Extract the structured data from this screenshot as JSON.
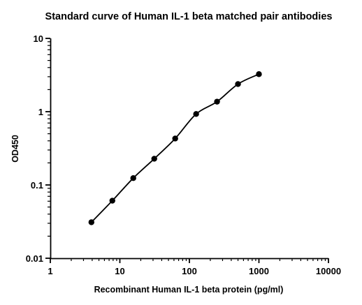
{
  "chart_data": {
    "type": "scatter",
    "title": "Standard curve of Human IL-1 beta matched pair antibodies",
    "xlabel": "Recombinant Human IL-1 beta protein (pg/ml)",
    "ylabel": "OD450",
    "xscale": "log",
    "yscale": "log",
    "xlim": [
      1,
      10000
    ],
    "ylim": [
      0.01,
      10
    ],
    "x_ticks": [
      "1",
      "10",
      "100",
      "1000",
      "10000"
    ],
    "y_ticks": [
      "0.01",
      "0.1",
      "1",
      "10"
    ],
    "grid": false,
    "legend": "none",
    "series": [
      {
        "x": [
          3.9,
          7.8,
          15.6,
          31.25,
          62.5,
          125,
          250,
          500,
          1000
        ],
        "y": [
          0.031,
          0.061,
          0.124,
          0.228,
          0.43,
          0.93,
          1.37,
          2.38,
          3.25
        ],
        "fit": "smooth curve",
        "color": "#000000"
      }
    ]
  }
}
